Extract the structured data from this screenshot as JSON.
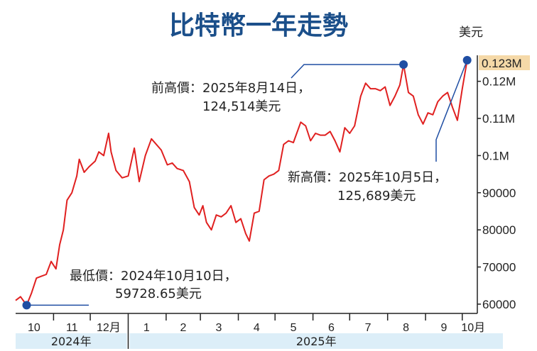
{
  "chart_data": {
    "type": "line",
    "title": "比特幣一年走勢",
    "unit_label": "美元",
    "y_ticks": [
      {
        "value": 60000,
        "label": "60000"
      },
      {
        "value": 70000,
        "label": "70000"
      },
      {
        "value": 80000,
        "label": "80000"
      },
      {
        "value": 90000,
        "label": "90000"
      },
      {
        "value": 100000,
        "label": "0.1M"
      },
      {
        "value": 110000,
        "label": "0.11M"
      },
      {
        "value": 120000,
        "label": "0.12M"
      }
    ],
    "current_value_label": "0.123M",
    "current_value": 123000,
    "ylim": [
      57500,
      127000
    ],
    "x_range": [
      "2024-10-01",
      "2025-10-11"
    ],
    "month_labels": [
      {
        "date": "2024-10-16",
        "label": "10"
      },
      {
        "date": "2024-11-16",
        "label": "11"
      },
      {
        "date": "2024-12-16",
        "label": "12月"
      },
      {
        "date": "2025-01-16",
        "label": "1"
      },
      {
        "date": "2025-02-15",
        "label": "2"
      },
      {
        "date": "2025-03-16",
        "label": "3"
      },
      {
        "date": "2025-04-16",
        "label": "4"
      },
      {
        "date": "2025-05-16",
        "label": "5"
      },
      {
        "date": "2025-06-16",
        "label": "6"
      },
      {
        "date": "2025-07-16",
        "label": "7"
      },
      {
        "date": "2025-08-16",
        "label": "8"
      },
      {
        "date": "2025-09-16",
        "label": "9"
      },
      {
        "date": "2025-10-10",
        "label": "10月"
      }
    ],
    "year_labels": [
      {
        "label": "2024年",
        "start": "2024-10-01",
        "end": "2025-01-01"
      },
      {
        "label": "2025年",
        "start": "2025-01-01",
        "end": "2025-10-11"
      }
    ],
    "series": [
      {
        "color": "#e02020",
        "x": [
          "2024-10-01",
          "2024-10-05",
          "2024-10-10",
          "2024-10-14",
          "2024-10-18",
          "2024-10-22",
          "2024-10-26",
          "2024-10-30",
          "2024-11-03",
          "2024-11-06",
          "2024-11-09",
          "2024-11-12",
          "2024-11-16",
          "2024-11-20",
          "2024-11-22",
          "2024-11-26",
          "2024-11-30",
          "2024-12-05",
          "2024-12-08",
          "2024-12-12",
          "2024-12-16",
          "2024-12-18",
          "2024-12-22",
          "2024-12-27",
          "2025-01-01",
          "2025-01-06",
          "2025-01-10",
          "2025-01-15",
          "2025-01-20",
          "2025-01-24",
          "2025-01-28",
          "2025-02-02",
          "2025-02-06",
          "2025-02-10",
          "2025-02-15",
          "2025-02-20",
          "2025-02-24",
          "2025-02-28",
          "2025-03-03",
          "2025-03-06",
          "2025-03-10",
          "2025-03-14",
          "2025-03-18",
          "2025-03-22",
          "2025-03-26",
          "2025-03-30",
          "2025-04-03",
          "2025-04-07",
          "2025-04-10",
          "2025-04-14",
          "2025-04-18",
          "2025-04-22",
          "2025-04-26",
          "2025-04-30",
          "2025-05-04",
          "2025-05-08",
          "2025-05-12",
          "2025-05-16",
          "2025-05-22",
          "2025-05-26",
          "2025-05-30",
          "2025-06-03",
          "2025-06-07",
          "2025-06-11",
          "2025-06-15",
          "2025-06-19",
          "2025-06-23",
          "2025-06-27",
          "2025-07-01",
          "2025-07-05",
          "2025-07-10",
          "2025-07-14",
          "2025-07-18",
          "2025-07-22",
          "2025-07-26",
          "2025-07-30",
          "2025-08-03",
          "2025-08-07",
          "2025-08-11",
          "2025-08-14",
          "2025-08-18",
          "2025-08-22",
          "2025-08-26",
          "2025-08-30",
          "2025-09-03",
          "2025-09-07",
          "2025-09-11",
          "2025-09-15",
          "2025-09-19",
          "2025-09-23",
          "2025-09-27",
          "2025-10-01",
          "2025-10-05"
        ],
        "values": [
          61000,
          62000,
          59728.65,
          63000,
          67000,
          67500,
          68000,
          71500,
          69500,
          76000,
          80000,
          88000,
          90000,
          94500,
          99000,
          95500,
          97000,
          98500,
          101000,
          100000,
          106000,
          101000,
          96000,
          94000,
          94500,
          102000,
          93000,
          100000,
          104500,
          103000,
          101500,
          97500,
          98000,
          96500,
          96000,
          93000,
          86000,
          84000,
          86500,
          82000,
          80000,
          84000,
          83500,
          84500,
          86500,
          82000,
          83000,
          79000,
          77000,
          84500,
          85000,
          93500,
          94500,
          95000,
          96000,
          103000,
          104000,
          103500,
          109000,
          108000,
          104000,
          106000,
          105500,
          105500,
          106500,
          104000,
          101000,
          107500,
          106000,
          108000,
          116000,
          119500,
          118000,
          118000,
          117500,
          118500,
          113500,
          116000,
          119000,
          124514,
          117000,
          116000,
          111000,
          108500,
          111500,
          111000,
          114500,
          116000,
          117000,
          113000,
          109500,
          118000,
          125689
        ]
      }
    ],
    "annotations": [
      {
        "line1": "最低價：2024年10月10日，",
        "line2": "59728.65美元",
        "date": "2024-10-10",
        "value": 59728.65
      },
      {
        "line1": "前高價：2025年8月14日，",
        "line2": "124,514美元",
        "date": "2025-08-14",
        "value": 124514
      },
      {
        "line1": "新高價：2025年10月5日，",
        "line2": "125,689美元",
        "date": "2025-10-05",
        "value": 125689
      }
    ],
    "colors": {
      "line": "#e02020",
      "marker": "#1f4ea3",
      "title": "#1b4f8a",
      "year_band": "#dceef8",
      "value_badge": "#f5d9a8"
    }
  }
}
